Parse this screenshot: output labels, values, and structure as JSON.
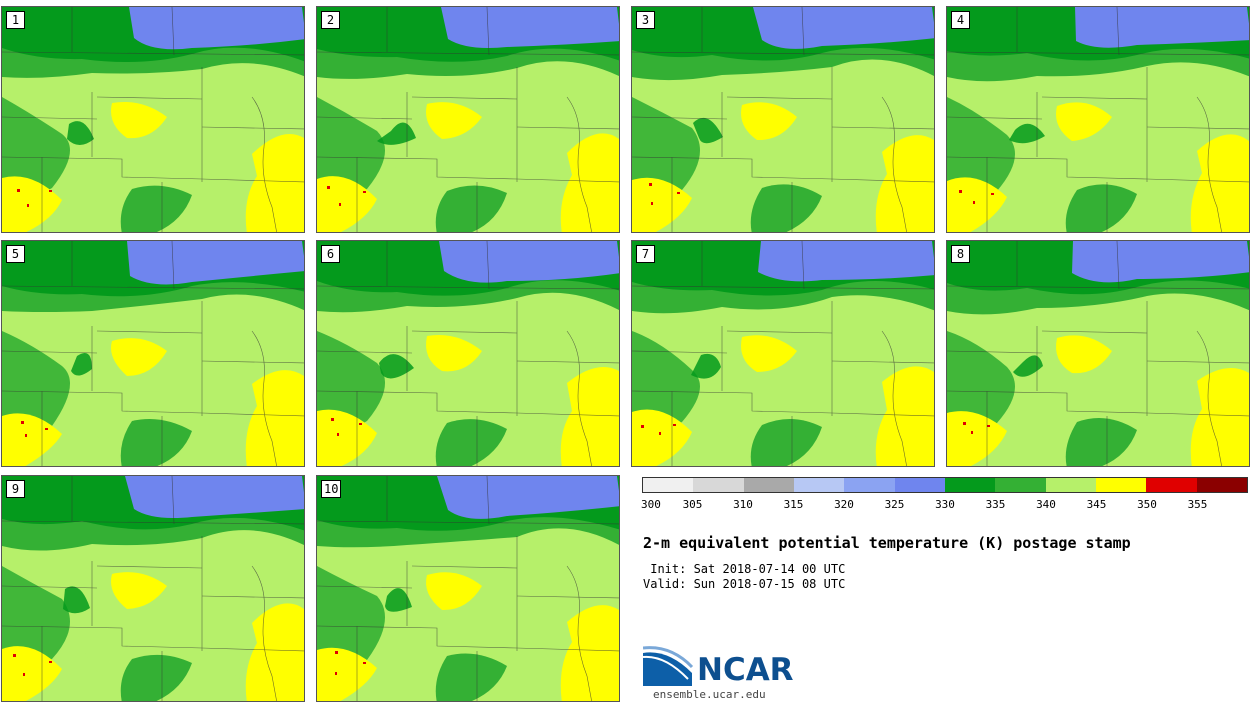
{
  "panels": [
    {
      "label": "1"
    },
    {
      "label": "2"
    },
    {
      "label": "3"
    },
    {
      "label": "4"
    },
    {
      "label": "5"
    },
    {
      "label": "6"
    },
    {
      "label": "7"
    },
    {
      "label": "8"
    },
    {
      "label": "9"
    },
    {
      "label": "10"
    }
  ],
  "colorbar": {
    "colors": [
      "#f0f0f0",
      "#d8d8d8",
      "#a9a9a9",
      "#b7c8f4",
      "#8ba3f2",
      "#6f85ee",
      "#049a1c",
      "#34b034",
      "#b6f06a",
      "#ffff00",
      "#e00000",
      "#8b0000"
    ],
    "ticks": [
      "300",
      "305",
      "310",
      "315",
      "320",
      "325",
      "330",
      "335",
      "340",
      "345",
      "350",
      "355"
    ]
  },
  "title": "2-m equivalent potential temperature (K) postage stamp",
  "init": " Init: Sat 2018-07-14 00 UTC",
  "valid": "Valid: Sun 2018-07-15 08 UTC",
  "logo": {
    "text": "NCAR",
    "site": "ensemble.ucar.edu"
  },
  "map_colors": {
    "cool_water": "#6f85ee",
    "dark_green": "#049a1c",
    "mid_green": "#34b034",
    "light_green": "#b6f06a",
    "yellow": "#ffff00",
    "red": "#e00000"
  }
}
